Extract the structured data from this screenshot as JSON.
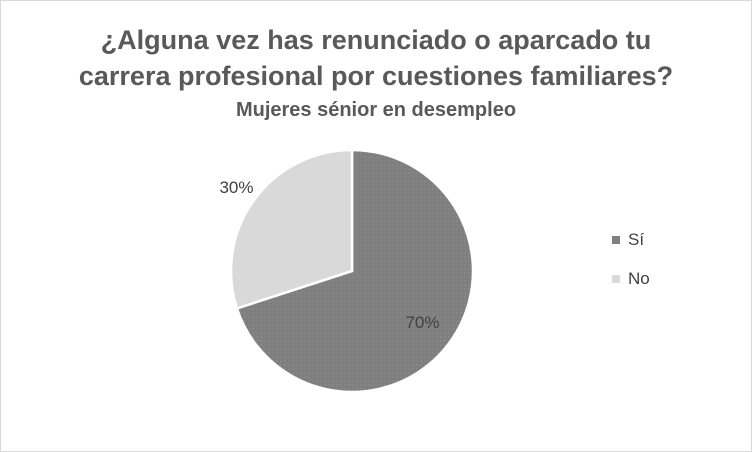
{
  "chart_data": {
    "type": "pie",
    "title": "¿Alguna vez has renunciado o aparcado tu carrera profesional por cuestiones familiares?",
    "title_lines": [
      "¿Alguna vez has renunciado o aparcado tu",
      "carrera profesional por cuestiones familiares?"
    ],
    "subtitle": "Mujeres sénior en desempleo",
    "categories": [
      "Sí",
      "No"
    ],
    "values": [
      70,
      30
    ],
    "data_labels": [
      "70%",
      "30%"
    ],
    "colors": [
      "#7f7f7f",
      "#d9d9d9"
    ],
    "legend_position": "right"
  }
}
